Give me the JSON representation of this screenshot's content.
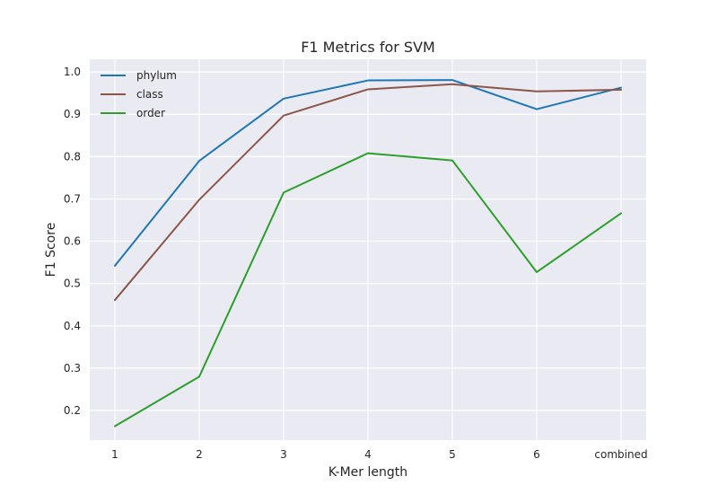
{
  "chart_data": {
    "type": "line",
    "title": "F1 Metrics for SVM",
    "xlabel": "K-Mer length",
    "ylabel": "F1 Score",
    "categories": [
      "1",
      "2",
      "3",
      "4",
      "5",
      "6",
      "combined"
    ],
    "yticks": [
      "0.2",
      "0.3",
      "0.4",
      "0.5",
      "0.6",
      "0.7",
      "0.8",
      "0.9",
      "1.0"
    ],
    "ylim": [
      0.13,
      1.03
    ],
    "grid": true,
    "background": "#EAEAF2",
    "legend_position": "top-left",
    "series": [
      {
        "name": "phylum",
        "color": "#1f77b4",
        "values": [
          0.542,
          0.79,
          0.937,
          0.98,
          0.981,
          0.912,
          0.963
        ]
      },
      {
        "name": "class",
        "color": "#8c564b",
        "values": [
          0.461,
          0.698,
          0.897,
          0.959,
          0.971,
          0.954,
          0.958
        ]
      },
      {
        "name": "order",
        "color": "#2ca02c",
        "values": [
          0.163,
          0.28,
          0.715,
          0.808,
          0.791,
          0.527,
          0.666
        ]
      }
    ]
  }
}
